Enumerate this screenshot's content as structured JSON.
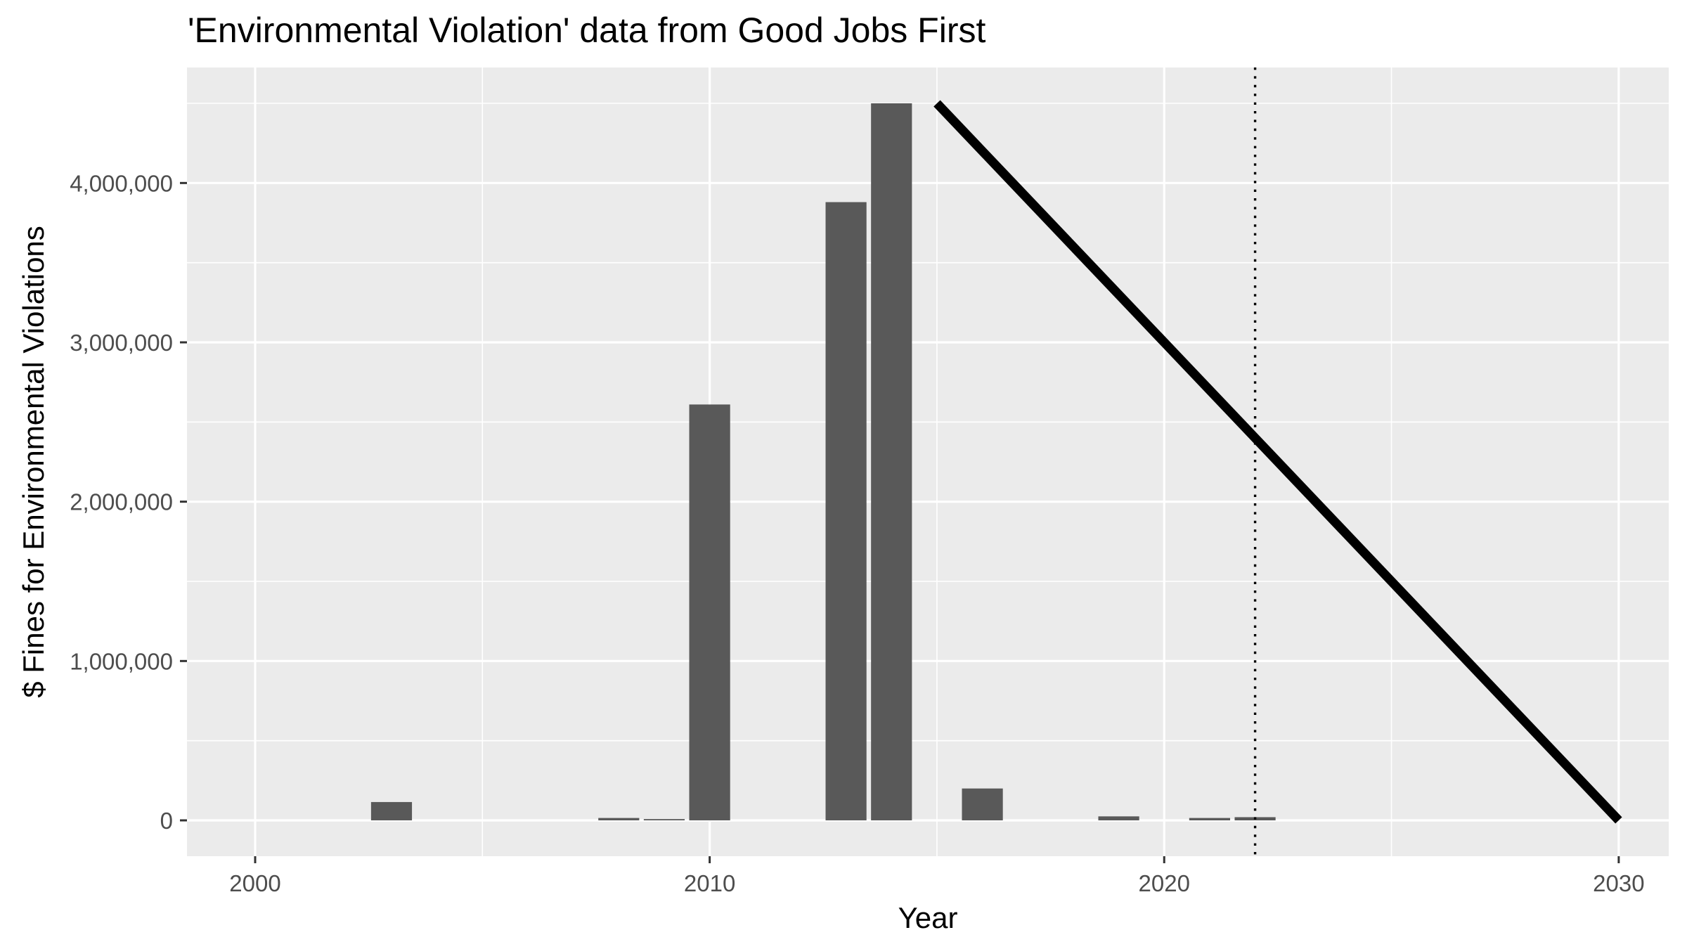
{
  "chart_data": {
    "type": "bar",
    "title": "'Environmental Violation' data from Good Jobs First",
    "xlabel": "Year",
    "ylabel": "$ Fines for Environmental Violations",
    "x_ticks": [
      2000,
      2010,
      2020,
      2030
    ],
    "y_ticks": [
      0,
      1000000,
      2000000,
      3000000,
      4000000
    ],
    "y_tick_labels": [
      "0",
      "1,000,000",
      "2,000,000",
      "3,000,000",
      "4,000,000"
    ],
    "xlim": [
      1998.5,
      2031.1
    ],
    "ylim": [
      -225000,
      4725000
    ],
    "grid": true,
    "series": [
      {
        "type": "bar",
        "x": [
          2003,
          2008,
          2009,
          2010,
          2013,
          2014,
          2016,
          2019,
          2021,
          2022
        ],
        "values": [
          115000,
          15000,
          8000,
          2610000,
          3880000,
          4500000,
          200000,
          25000,
          15000,
          20000
        ],
        "color": "#595959"
      },
      {
        "type": "line",
        "x": [
          2015,
          2030
        ],
        "values": [
          4500000,
          0
        ],
        "color": "#000000"
      }
    ],
    "reference_line": {
      "x": 2022,
      "style": "dotted",
      "color": "#000000"
    },
    "colors": {
      "panel": "#ebebeb",
      "grid": "#ffffff",
      "bar": "#595959",
      "line": "#000000"
    }
  }
}
